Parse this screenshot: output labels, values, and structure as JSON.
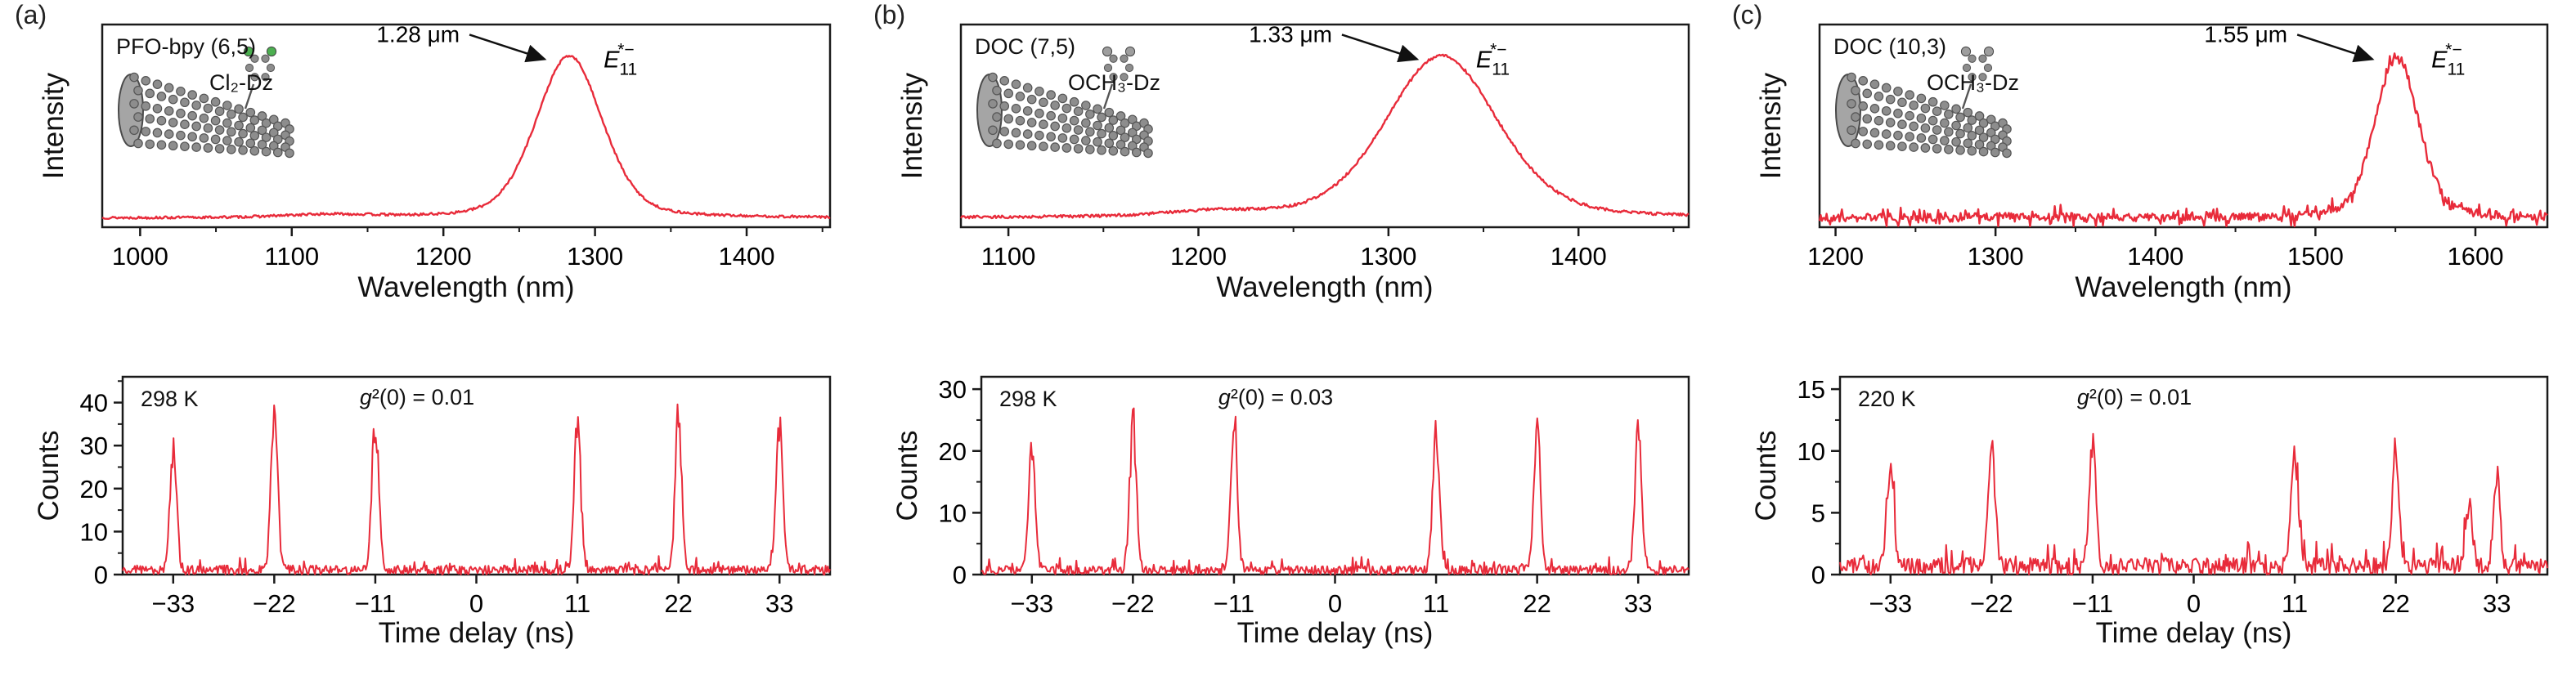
{
  "figure": {
    "panels": [
      {
        "letter": "(a)"
      },
      {
        "letter": "(b)"
      },
      {
        "letter": "(c)"
      }
    ]
  },
  "chart_data": [
    {
      "panel": "a",
      "kind": "spectrum",
      "type": "line",
      "xlabel": "Wavelength (nm)",
      "ylabel": "Intensity",
      "xlim": [
        975,
        1455
      ],
      "xticks": [
        1000,
        1100,
        1200,
        1300,
        1400
      ],
      "minor_tick_step": 50,
      "color": "#e82b3a",
      "peak": {
        "center_nm": 1283,
        "fwhm_nm": 52,
        "height_rel": 1.0
      },
      "secondary_bump": {
        "center_nm": 1125,
        "fwhm_nm": 70,
        "height_rel": 0.018
      },
      "noise_rel": 0.006,
      "noisy": false,
      "sample_label": "PFO-bpy (6,5)",
      "dopant_label": "Cl₂-Dz",
      "peak_annotation": "1.28 μm",
      "exciton_label": {
        "base": "E",
        "sub": "11",
        "sup": "*−"
      },
      "icon": "carbon-nanotube",
      "molecule_color": "#4caf50"
    },
    {
      "panel": "b",
      "kind": "spectrum",
      "type": "line",
      "xlabel": "Wavelength (nm)",
      "ylabel": "Intensity",
      "xlim": [
        1075,
        1458
      ],
      "xticks": [
        1100,
        1200,
        1300,
        1400
      ],
      "minor_tick_step": 50,
      "color": "#e82b3a",
      "peak": {
        "center_nm": 1328,
        "fwhm_nm": 70,
        "height_rel": 1.0
      },
      "secondary_bump": {
        "center_nm": 1208,
        "fwhm_nm": 60,
        "height_rel": 0.03
      },
      "noise_rel": 0.007,
      "noisy": false,
      "sample_label": "DOC (7,5)",
      "dopant_label": "OCH₃-Dz",
      "peak_annotation": "1.33 μm",
      "exciton_label": {
        "base": "E",
        "sub": "11",
        "sup": "*−"
      },
      "icon": "carbon-nanotube",
      "molecule_color": "#9e9e9e"
    },
    {
      "panel": "c",
      "kind": "spectrum",
      "type": "line",
      "xlabel": "Wavelength (nm)",
      "ylabel": "Intensity",
      "xlim": [
        1190,
        1645
      ],
      "xticks": [
        1200,
        1300,
        1400,
        1500,
        1600
      ],
      "minor_tick_step": 50,
      "color": "#e82b3a",
      "peak": {
        "center_nm": 1551,
        "fwhm_nm": 32,
        "height_rel": 1.0
      },
      "secondary_bump": {
        "center_nm": 1300,
        "fwhm_nm": 120,
        "height_rel": 0.008
      },
      "noise_rel": 0.02,
      "noisy": true,
      "sample_label": "DOC (10,3)",
      "dopant_label": "OCH₃-Dz",
      "peak_annotation": "1.55 μm",
      "exciton_label": {
        "base": "E",
        "sub": "11",
        "sup": "*−"
      },
      "icon": "carbon-nanotube",
      "molecule_color": "#9e9e9e"
    },
    {
      "panel": "a",
      "kind": "g2",
      "type": "line",
      "xlabel": "Time delay (ns)",
      "ylabel": "Counts",
      "xlim": [
        -38.5,
        38.5
      ],
      "xticks": [
        -33,
        -22,
        -11,
        0,
        11,
        22,
        33
      ],
      "ylim": [
        0,
        46
      ],
      "yticks": [
        0,
        10,
        20,
        30,
        40
      ],
      "y_minor_step": 5,
      "pulse_period_ns": 11,
      "peaks": [
        {
          "t": -33,
          "counts": 30
        },
        {
          "t": -22,
          "counts": 37
        },
        {
          "t": -11,
          "counts": 37
        },
        {
          "t": 11,
          "counts": 36
        },
        {
          "t": 22,
          "counts": 37
        },
        {
          "t": 33,
          "counts": 34
        }
      ],
      "baseline_counts": 2.4,
      "temperature_label": "298 K",
      "g2_label": "g²(0) = 0.01",
      "color": "#e82b3a"
    },
    {
      "panel": "b",
      "kind": "g2",
      "type": "line",
      "xlabel": "Time delay (ns)",
      "ylabel": "Counts",
      "xlim": [
        -38.5,
        38.5
      ],
      "xticks": [
        -33,
        -22,
        -11,
        0,
        11,
        22,
        33
      ],
      "ylim": [
        0,
        32
      ],
      "yticks": [
        0,
        10,
        20,
        30
      ],
      "y_minor_step": 5,
      "pulse_period_ns": 11,
      "peaks": [
        {
          "t": -33,
          "counts": 20
        },
        {
          "t": -22,
          "counts": 24
        },
        {
          "t": -11,
          "counts": 25
        },
        {
          "t": 11,
          "counts": 24
        },
        {
          "t": 22,
          "counts": 23
        },
        {
          "t": 33,
          "counts": 24
        }
      ],
      "baseline_counts": 1.6,
      "temperature_label": "298 K",
      "g2_label": "g²(0) = 0.03",
      "color": "#e82b3a"
    },
    {
      "panel": "c",
      "kind": "g2",
      "type": "line",
      "xlabel": "Time delay (ns)",
      "ylabel": "Counts",
      "xlim": [
        -38.5,
        38.5
      ],
      "xticks": [
        -33,
        -22,
        -11,
        0,
        11,
        22,
        33
      ],
      "ylim": [
        0,
        16
      ],
      "yticks": [
        0,
        5,
        10,
        15
      ],
      "y_minor_step": 2.5,
      "pulse_period_ns": 11,
      "peaks": [
        {
          "t": -33,
          "counts": 9
        },
        {
          "t": -22,
          "counts": 10
        },
        {
          "t": -11,
          "counts": 10
        },
        {
          "t": 11,
          "counts": 10
        },
        {
          "t": 22,
          "counts": 9
        },
        {
          "t": 30,
          "counts": 5
        },
        {
          "t": 33,
          "counts": 7
        }
      ],
      "baseline_counts": 1.5,
      "temperature_label": "220 K",
      "g2_label": "g²(0) = 0.01",
      "color": "#e82b3a"
    }
  ]
}
